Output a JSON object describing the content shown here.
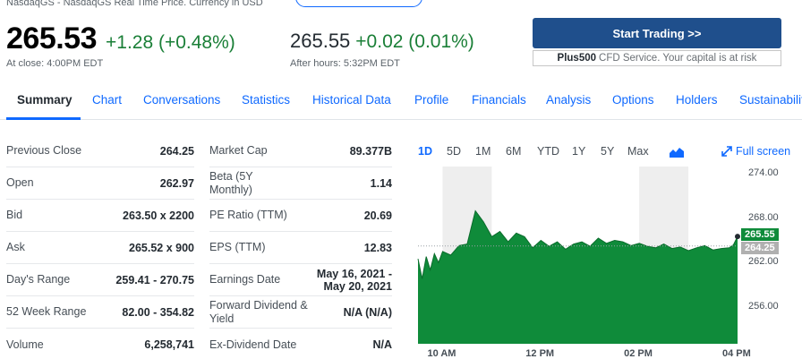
{
  "header": {
    "exchange_line": "NasdaqGS - NasdaqGS Real Time Price. Currency in USD",
    "price": "265.53",
    "change": "+1.28 (+0.48%)",
    "close_label": "At close: 4:00PM EDT",
    "after_hours_price": "265.55",
    "after_hours_change": "+0.02 (0.01%)",
    "after_hours_label": "After hours: 5:32PM EDT"
  },
  "promo": {
    "button_label": "Start Trading >>",
    "note_brand": "Plus500",
    "note_text": "CFD Service. Your capital is at risk"
  },
  "tabs": [
    "Summary",
    "Chart",
    "Conversations",
    "Statistics",
    "Historical Data",
    "Profile",
    "Financials",
    "Analysis",
    "Options",
    "Holders",
    "Sustainability"
  ],
  "active_tab": "Summary",
  "stats_left": [
    {
      "label": "Previous Close",
      "value": "264.25"
    },
    {
      "label": "Open",
      "value": "262.97"
    },
    {
      "label": "Bid",
      "value": "263.50 x 2200"
    },
    {
      "label": "Ask",
      "value": "265.52 x 900"
    },
    {
      "label": "Day's Range",
      "value": "259.41 - 270.75"
    },
    {
      "label": "52 Week Range",
      "value": "82.00 - 354.82"
    },
    {
      "label": "Volume",
      "value": "6,258,741"
    }
  ],
  "stats_right": [
    {
      "label": "Market Cap",
      "value": "89.377B"
    },
    {
      "label": "Beta (5Y Monthly)",
      "value": "1.14"
    },
    {
      "label": "PE Ratio (TTM)",
      "value": "20.69"
    },
    {
      "label": "EPS (TTM)",
      "value": "12.83"
    },
    {
      "label": "Earnings Date",
      "value": "May 16, 2021 - May 20, 2021"
    },
    {
      "label": "Forward Dividend & Yield",
      "value": "N/A (N/A)"
    },
    {
      "label": "Ex-Dividend Date",
      "value": "N/A"
    }
  ],
  "chart_controls": {
    "ranges": [
      "1D",
      "5D",
      "1M",
      "6M",
      "YTD",
      "1Y",
      "5Y",
      "Max"
    ],
    "active_range": "1D",
    "chart_type_icon": "mountain-chart-icon",
    "fullscreen_label": "Full screen",
    "fullscreen_icon": "expand-arrow-icon"
  },
  "chart_data": {
    "type": "area",
    "x_ticks": [
      "10 AM",
      "12 PM",
      "02 PM",
      "04 PM"
    ],
    "y_ticks": [
      "274.00",
      "268.00",
      "262.00",
      "256.00"
    ],
    "ylim": [
      251,
      275
    ],
    "time_range": [
      "09:30",
      "16:00"
    ],
    "series": [
      {
        "x": [
          "09:30",
          "09:35",
          "09:40",
          "09:45",
          "09:50",
          "09:55",
          "10:00",
          "10:10",
          "10:20",
          "10:30",
          "10:40",
          "10:50",
          "11:00",
          "11:10",
          "11:20",
          "11:30",
          "11:40",
          "11:50",
          "12:00",
          "12:10",
          "12:20",
          "12:30",
          "12:40",
          "12:50",
          "13:00",
          "13:10",
          "13:20",
          "13:30",
          "13:40",
          "13:50",
          "14:00",
          "14:10",
          "14:20",
          "14:30",
          "14:40",
          "14:50",
          "15:00",
          "15:10",
          "15:20",
          "15:30",
          "15:40",
          "15:50",
          "15:55",
          "16:00"
        ],
        "y": [
          262.5,
          259.8,
          262.8,
          261.0,
          263.2,
          262.0,
          263.5,
          263.0,
          264.3,
          264.5,
          269.0,
          267.5,
          265.5,
          266.2,
          264.8,
          266.0,
          265.5,
          264.0,
          265.0,
          264.2,
          264.8,
          263.8,
          264.5,
          264.8,
          264.2,
          265.3,
          264.6,
          265.0,
          264.8,
          264.3,
          264.6,
          264.2,
          264.0,
          264.5,
          263.9,
          264.1,
          263.6,
          264.0,
          264.3,
          263.7,
          263.9,
          264.0,
          264.4,
          265.53
        ]
      }
    ],
    "previous_close": 264.25,
    "last_price_label": "265.55",
    "previous_close_label": "264.25",
    "colors": {
      "area": "#0f8b3a",
      "line": "#0a6b2b",
      "shade": "#eeeeee",
      "flag_last": "#0f8b3a",
      "flag_prev": "#b0b0b0"
    },
    "grid": false
  }
}
